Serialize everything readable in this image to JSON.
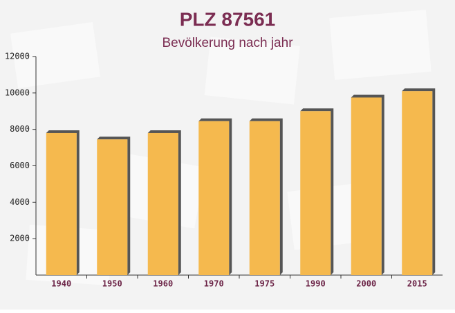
{
  "chart_data": {
    "type": "bar",
    "title": "PLZ 87561",
    "subtitle": "Bevölkerung nach jahr",
    "categories": [
      "1940",
      "1950",
      "1960",
      "1970",
      "1975",
      "1990",
      "2000",
      "2015"
    ],
    "values": [
      7800,
      7450,
      7800,
      8450,
      8450,
      9000,
      9750,
      10100
    ],
    "color": "#f5b94e",
    "ylim": [
      0,
      12000
    ],
    "yticks": [
      2000,
      4000,
      6000,
      8000,
      10000,
      12000
    ],
    "grid": false
  }
}
